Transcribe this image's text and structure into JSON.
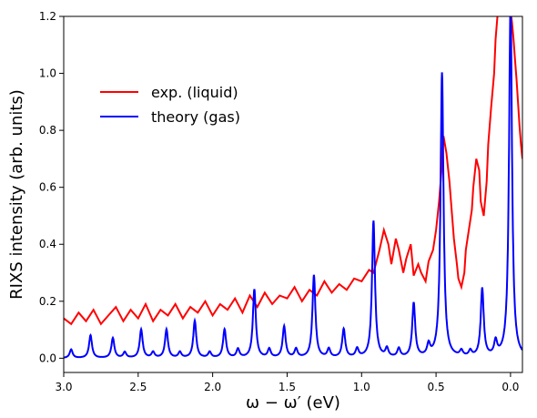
{
  "chart_data": {
    "type": "line",
    "title": "",
    "xlabel": "ω − ω′ (eV)",
    "ylabel": "RIXS intensity (arb. units)",
    "xlim": [
      3.0,
      -0.08
    ],
    "ylim": [
      -0.05,
      1.2
    ],
    "x_reversed": true,
    "grid": false,
    "legend_placement": "upper-left",
    "x_ticks": [
      3.0,
      2.5,
      2.0,
      1.5,
      1.0,
      0.5,
      0.0
    ],
    "x_tick_labels": [
      "3.0",
      "2.5",
      "2.0",
      "1.5",
      "1.0",
      "0.5",
      "0.0"
    ],
    "y_ticks": [
      0.0,
      0.2,
      0.4,
      0.6,
      0.8,
      1.0,
      1.2
    ],
    "y_tick_labels": [
      "0.0",
      "0.2",
      "0.4",
      "0.6",
      "0.8",
      "1.0",
      "1.2"
    ],
    "series": [
      {
        "name": "exp. (liquid)",
        "color": "#ff0000",
        "x": [
          3.0,
          2.95,
          2.9,
          2.85,
          2.8,
          2.75,
          2.7,
          2.65,
          2.6,
          2.55,
          2.5,
          2.45,
          2.4,
          2.35,
          2.3,
          2.25,
          2.2,
          2.15,
          2.1,
          2.05,
          2.0,
          1.95,
          1.9,
          1.85,
          1.8,
          1.75,
          1.7,
          1.65,
          1.6,
          1.55,
          1.5,
          1.45,
          1.4,
          1.35,
          1.3,
          1.25,
          1.2,
          1.15,
          1.1,
          1.05,
          1.0,
          0.95,
          0.92,
          0.88,
          0.85,
          0.82,
          0.8,
          0.77,
          0.75,
          0.72,
          0.7,
          0.67,
          0.65,
          0.62,
          0.6,
          0.57,
          0.55,
          0.52,
          0.5,
          0.48,
          0.46,
          0.45,
          0.43,
          0.41,
          0.4,
          0.38,
          0.36,
          0.35,
          0.33,
          0.31,
          0.3,
          0.28,
          0.26,
          0.25,
          0.23,
          0.21,
          0.2,
          0.18,
          0.16,
          0.15,
          0.13,
          0.11,
          0.1,
          0.08,
          0.06,
          0.05,
          0.04,
          0.03,
          0.02,
          0.01,
          0.0,
          -0.01,
          -0.02,
          -0.03,
          -0.04,
          -0.05,
          -0.06,
          -0.07,
          -0.08
        ],
        "y": [
          0.14,
          0.12,
          0.16,
          0.13,
          0.17,
          0.12,
          0.15,
          0.18,
          0.13,
          0.17,
          0.14,
          0.19,
          0.13,
          0.17,
          0.15,
          0.19,
          0.14,
          0.18,
          0.16,
          0.2,
          0.15,
          0.19,
          0.17,
          0.21,
          0.16,
          0.22,
          0.18,
          0.23,
          0.19,
          0.22,
          0.21,
          0.25,
          0.2,
          0.24,
          0.22,
          0.27,
          0.23,
          0.26,
          0.24,
          0.28,
          0.27,
          0.31,
          0.3,
          0.38,
          0.45,
          0.4,
          0.33,
          0.42,
          0.38,
          0.3,
          0.35,
          0.4,
          0.29,
          0.33,
          0.3,
          0.27,
          0.34,
          0.38,
          0.45,
          0.55,
          0.68,
          0.78,
          0.72,
          0.62,
          0.55,
          0.42,
          0.33,
          0.28,
          0.25,
          0.3,
          0.38,
          0.45,
          0.52,
          0.6,
          0.7,
          0.66,
          0.55,
          0.5,
          0.62,
          0.75,
          0.88,
          1.0,
          1.12,
          1.25,
          1.3,
          1.32,
          1.28,
          1.3,
          1.27,
          1.25,
          1.22,
          1.18,
          1.12,
          1.05,
          0.98,
          0.9,
          0.82,
          0.75,
          0.7
        ]
      },
      {
        "name": "theory (gas)",
        "color": "#0000ff",
        "peaks": [
          [
            2.82,
            0.08
          ],
          [
            2.67,
            0.07
          ],
          [
            2.48,
            0.1
          ],
          [
            2.31,
            0.1
          ],
          [
            2.12,
            0.13
          ],
          [
            1.92,
            0.1
          ],
          [
            1.72,
            0.24
          ],
          [
            1.52,
            0.11
          ],
          [
            1.32,
            0.29
          ],
          [
            1.12,
            0.1
          ],
          [
            0.92,
            0.48
          ],
          [
            0.65,
            0.19
          ],
          [
            0.46,
            1.0
          ],
          [
            0.19,
            0.24
          ],
          [
            0.0,
            1.25
          ]
        ],
        "minor_peaks": [
          [
            2.95,
            0.03
          ],
          [
            2.59,
            0.02
          ],
          [
            2.4,
            0.02
          ],
          [
            2.22,
            0.02
          ],
          [
            2.02,
            0.02
          ],
          [
            1.83,
            0.03
          ],
          [
            1.62,
            0.03
          ],
          [
            1.44,
            0.03
          ],
          [
            1.22,
            0.03
          ],
          [
            1.03,
            0.03
          ],
          [
            0.83,
            0.03
          ],
          [
            0.75,
            0.03
          ],
          [
            0.55,
            0.04
          ],
          [
            0.33,
            0.02
          ],
          [
            0.27,
            0.02
          ],
          [
            0.1,
            0.05
          ]
        ]
      }
    ]
  }
}
